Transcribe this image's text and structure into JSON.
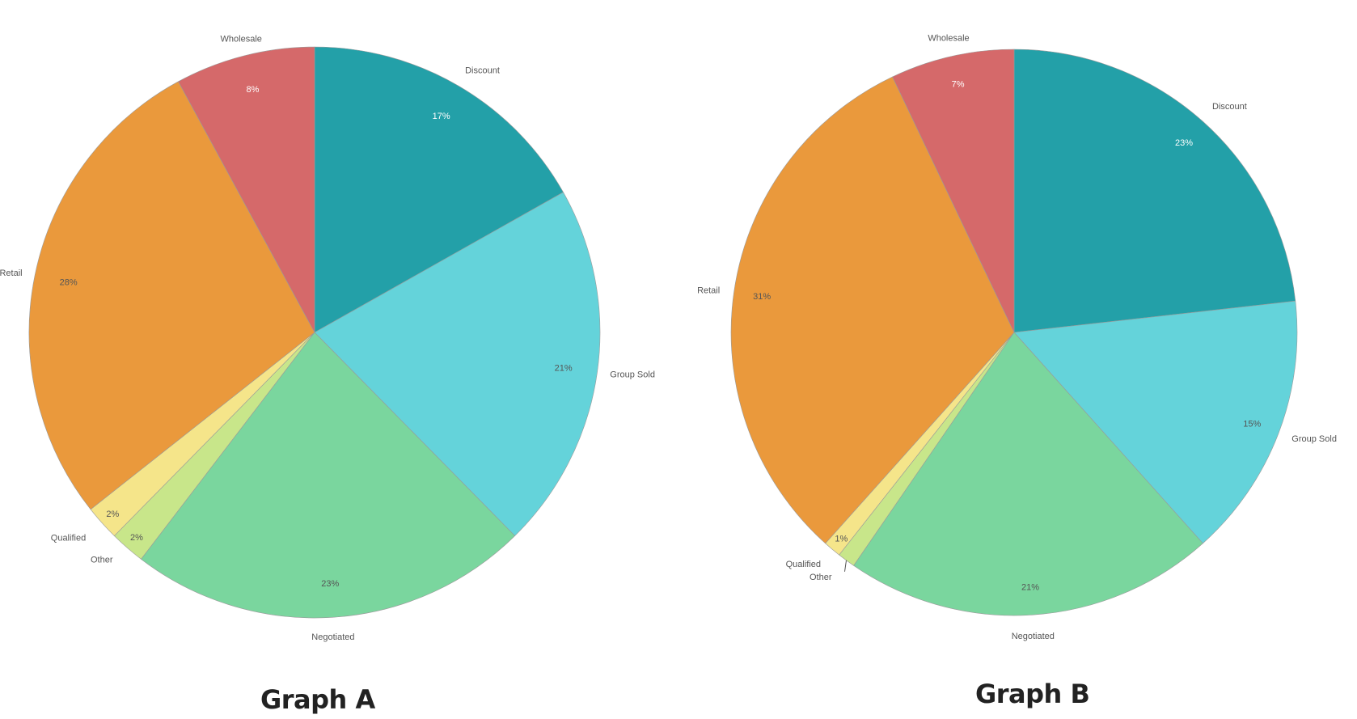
{
  "chart_data": [
    {
      "type": "pie",
      "title": "Graph A",
      "categories": [
        "Discount",
        "Group Sold",
        "Negotiated",
        "Other",
        "Qualified",
        "Retail",
        "Wholesale"
      ],
      "values": [
        17,
        21,
        23,
        2,
        2,
        28,
        8
      ],
      "labels": [
        "17%",
        "21%",
        "23%",
        "2%",
        "2%",
        "28%",
        "8%"
      ],
      "colors": [
        "#23a0a8",
        "#64d3da",
        "#7ad69e",
        "#c8e68a",
        "#f5e58a",
        "#ea993c",
        "#d5696a"
      ],
      "legend": "none"
    },
    {
      "type": "pie",
      "title": "Graph B",
      "categories": [
        "Discount",
        "Group Sold",
        "Negotiated",
        "Other",
        "Qualified",
        "Retail",
        "Wholesale"
      ],
      "values": [
        23,
        15,
        21,
        1,
        1,
        31,
        7
      ],
      "labels": [
        "23%",
        "15%",
        "21%",
        "",
        "1%",
        "31%",
        "7%"
      ],
      "colors": [
        "#23a0a8",
        "#64d3da",
        "#7ad69e",
        "#c8e68a",
        "#f5e58a",
        "#ea993c",
        "#d5696a"
      ],
      "legend": "none"
    }
  ]
}
